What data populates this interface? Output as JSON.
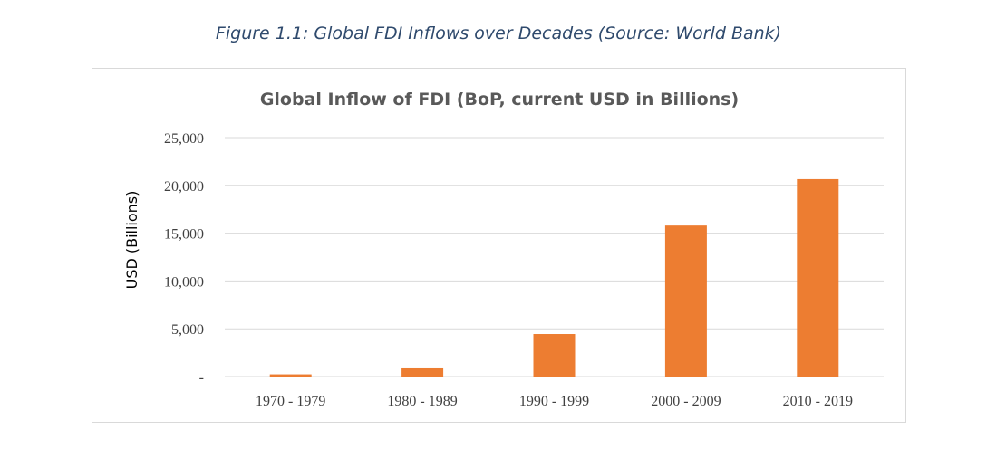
{
  "caption": "Figure 1.1: Global FDI Inflows over Decades (Source: World Bank)",
  "colors": {
    "bar": "#ed7d31",
    "grid": "#d9d9d9",
    "caption": "#2f4a6d"
  },
  "chart_data": {
    "type": "bar",
    "title": "Global Inflow of FDI (BoP, current USD in Billions)",
    "xlabel": "",
    "ylabel": "USD (Billions)",
    "categories": [
      "1970 - 1979",
      "1980 - 1989",
      "1990 - 1999",
      "2000 - 2009",
      "2010 - 2019"
    ],
    "values": [
      230,
      950,
      4450,
      15800,
      20650
    ],
    "ylim": [
      0,
      25000
    ],
    "yticks": [
      0,
      5000,
      10000,
      15000,
      20000,
      25000
    ],
    "ytick_labels": [
      "-",
      "5,000",
      "10,000",
      "15,000",
      "20,000",
      "25,000"
    ],
    "grid": true,
    "legend": "none"
  }
}
